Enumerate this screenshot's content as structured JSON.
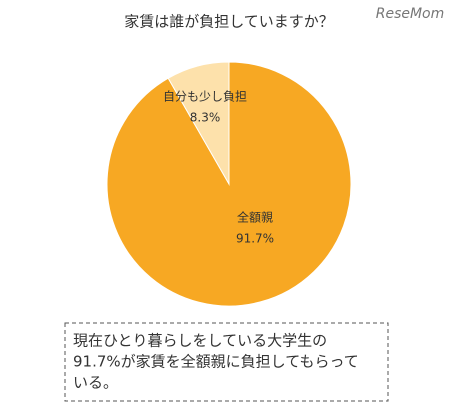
{
  "chart_data": {
    "type": "pie",
    "title": "家賃は誰が負担していますか？",
    "source": "ReseMom",
    "categories": [
      "全額親",
      "自分も少し負担"
    ],
    "values": [
      91.7,
      8.3
    ],
    "value_labels": [
      "91.7%",
      "8.3%"
    ],
    "colors": [
      "#f7a823",
      "#fde1ab"
    ],
    "annotations": [
      "現在ひとり暮らしをしている大学生の",
      "91.7%が家賃を全額親に負担してもらって",
      "いる。"
    ]
  }
}
